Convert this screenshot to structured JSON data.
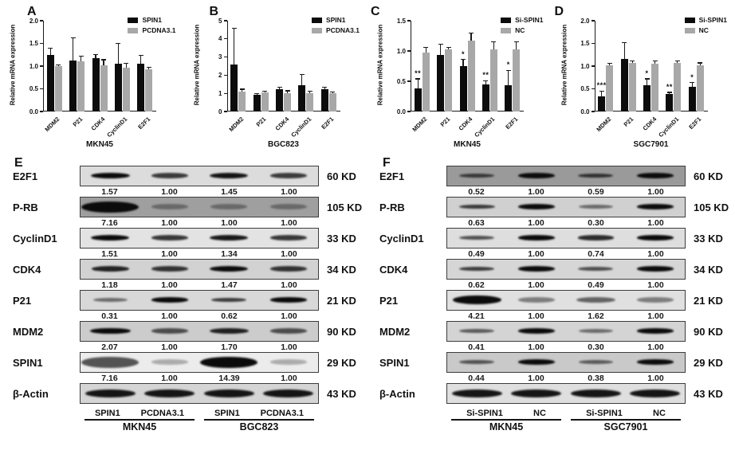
{
  "page": {
    "background": "#ffffff"
  },
  "colors": {
    "bar_black": "#0c0c0c",
    "bar_gray": "#a8a8a8",
    "axis": "#1a1a1a",
    "band": "#0b0b0b"
  },
  "chart_data": [
    {
      "type": "bar",
      "panel": "A",
      "categories": [
        "MDM2",
        "P21",
        "CDK4",
        "CyclinD1",
        "E2F1"
      ],
      "series": [
        {
          "name": "SPIN1",
          "color": "#0c0c0c",
          "values": [
            1.25,
            1.12,
            1.18,
            1.05,
            1.06
          ],
          "errors": [
            0.15,
            0.5,
            0.08,
            0.45,
            0.18
          ],
          "sig": [
            "",
            "",
            "",
            "",
            ""
          ]
        },
        {
          "name": "PCDNA3.1",
          "color": "#a8a8a8",
          "values": [
            1.0,
            1.1,
            1.01,
            0.96,
            0.93
          ],
          "errors": [
            0.03,
            0.12,
            0.13,
            0.1,
            0.05
          ]
        }
      ],
      "ylabel": "Relative mRNA expression",
      "xlabel": "MKN45",
      "ylim": [
        0,
        2
      ],
      "yticks": [
        0,
        0.5,
        1,
        1.5,
        2
      ],
      "ytick_labels": [
        "0.0",
        "0.5",
        "1.0",
        "1.5",
        "2.0"
      ],
      "legend_position": "top-right",
      "grid": false
    },
    {
      "type": "bar",
      "panel": "B",
      "categories": [
        "MDM2",
        "P21",
        "CDK4",
        "CyclinD1",
        "E2F1"
      ],
      "series": [
        {
          "name": "SPIN1",
          "color": "#0c0c0c",
          "values": [
            2.6,
            0.9,
            1.22,
            1.45,
            1.22
          ],
          "errors": [
            2.0,
            0.1,
            0.1,
            0.6,
            0.12
          ],
          "sig": [
            "",
            "",
            "",
            "",
            ""
          ]
        },
        {
          "name": "PCDNA3.1",
          "color": "#a8a8a8",
          "values": [
            1.08,
            1.05,
            1.02,
            1.02,
            1.0
          ],
          "errors": [
            0.15,
            0.08,
            0.12,
            0.1,
            0.08
          ]
        }
      ],
      "ylabel": "Relative mRNA expression",
      "xlabel": "BGC823",
      "ylim": [
        0,
        5
      ],
      "yticks": [
        0,
        1,
        2,
        3,
        4,
        5
      ],
      "ytick_labels": [
        "0",
        "1",
        "2",
        "3",
        "4",
        "5"
      ],
      "legend_position": "top-right",
      "grid": false
    },
    {
      "type": "bar",
      "panel": "C",
      "categories": [
        "MDM2",
        "P21",
        "CDK4",
        "CyclinD1",
        "E2F1"
      ],
      "series": [
        {
          "name": "Si-SPIN1",
          "color": "#0c0c0c",
          "values": [
            0.38,
            0.94,
            0.75,
            0.45,
            0.43
          ],
          "errors": [
            0.16,
            0.17,
            0.11,
            0.06,
            0.25
          ],
          "sig": [
            "**",
            "",
            "*",
            "**",
            "*"
          ]
        },
        {
          "name": "NC",
          "color": "#a8a8a8",
          "values": [
            0.98,
            1.02,
            1.17,
            1.02,
            1.03
          ],
          "errors": [
            0.08,
            0.04,
            0.13,
            0.13,
            0.12
          ]
        }
      ],
      "ylabel": "Relative mRNA expression",
      "xlabel": "MKN45",
      "ylim": [
        0,
        1.5
      ],
      "yticks": [
        0,
        0.5,
        1,
        1.5
      ],
      "ytick_labels": [
        "0.0",
        "0.5",
        "1.0",
        "1.5"
      ],
      "legend_position": "top-right",
      "grid": false
    },
    {
      "type": "bar",
      "panel": "D",
      "categories": [
        "MDM2",
        "P21",
        "CDK4",
        "CyclinD1",
        "E2F1"
      ],
      "series": [
        {
          "name": "Si-SPIN1",
          "color": "#0c0c0c",
          "values": [
            0.33,
            1.15,
            0.58,
            0.38,
            0.54
          ],
          "errors": [
            0.12,
            0.37,
            0.14,
            0.04,
            0.1
          ],
          "sig": [
            "***",
            "",
            "*",
            "**",
            "*"
          ]
        },
        {
          "name": "NC",
          "color": "#a8a8a8",
          "values": [
            1.02,
            1.07,
            1.06,
            1.07,
            1.02
          ],
          "errors": [
            0.04,
            0.05,
            0.05,
            0.05,
            0.05
          ]
        }
      ],
      "ylabel": "Relative mRNA expression",
      "xlabel": "SGC7901",
      "ylim": [
        0,
        2
      ],
      "yticks": [
        0,
        0.5,
        1,
        1.5,
        2
      ],
      "ytick_labels": [
        "0.0",
        "0.5",
        "1.0",
        "1.5",
        "2.0"
      ],
      "legend_position": "top-right",
      "grid": false
    }
  ],
  "blot_data": [
    {
      "panel": "E",
      "rows": [
        {
          "protein": "E2F1",
          "kd": "60 KD",
          "values": [
            "1.57",
            "1.00",
            "1.45",
            "1.00"
          ],
          "bg": "#dcdcdc"
        },
        {
          "protein": "P-RB",
          "kd": "105 KD",
          "values": [
            "7.16",
            "1.00",
            "1.00",
            "1.00"
          ],
          "bg": "#9f9f9f"
        },
        {
          "protein": "CyclinD1",
          "kd": "33 KD",
          "values": [
            "1.51",
            "1.00",
            "1.34",
            "1.00"
          ],
          "bg": "#e3e3e3"
        },
        {
          "protein": "CDK4",
          "kd": "34 KD",
          "values": [
            "1.18",
            "1.00",
            "1.47",
            "1.00"
          ],
          "bg": "#d2d2d2"
        },
        {
          "protein": "P21",
          "kd": "21 KD",
          "values": [
            "0.31",
            "1.00",
            "0.62",
            "1.00"
          ],
          "bg": "#d8d8d8"
        },
        {
          "protein": "MDM2",
          "kd": "90 KD",
          "values": [
            "2.07",
            "1.00",
            "1.70",
            "1.00"
          ],
          "bg": "#cccccc"
        },
        {
          "protein": "SPIN1",
          "kd": "29 KD",
          "values": [
            "7.16",
            "1.00",
            "14.39",
            "1.00"
          ],
          "bg": "#ececec"
        },
        {
          "protein": "β-Actin",
          "kd": "43 KD",
          "values": null,
          "bg": "#d5d5d5"
        }
      ],
      "lanes": [
        "SPIN1",
        "PCDNA3.1",
        "SPIN1",
        "PCDNA3.1"
      ],
      "groups": [
        "MKN45",
        "BGC823"
      ]
    },
    {
      "panel": "F",
      "rows": [
        {
          "protein": "E2F1",
          "kd": "60 KD",
          "values": [
            "0.52",
            "1.00",
            "0.59",
            "1.00"
          ],
          "bg": "#9a9a9a"
        },
        {
          "protein": "P-RB",
          "kd": "105 KD",
          "values": [
            "0.63",
            "1.00",
            "0.30",
            "1.00"
          ],
          "bg": "#d0d0d0"
        },
        {
          "protein": "CyclinD1",
          "kd": "33 KD",
          "values": [
            "0.49",
            "1.00",
            "0.74",
            "1.00"
          ],
          "bg": "#dedede"
        },
        {
          "protein": "CDK4",
          "kd": "34 KD",
          "values": [
            "0.62",
            "1.00",
            "0.49",
            "1.00"
          ],
          "bg": "#d6d6d6"
        },
        {
          "protein": "P21",
          "kd": "21 KD",
          "values": [
            "4.21",
            "1.00",
            "1.62",
            "1.00"
          ],
          "bg": "#e0e0e0"
        },
        {
          "protein": "MDM2",
          "kd": "90 KD",
          "values": [
            "0.41",
            "1.00",
            "0.30",
            "1.00"
          ],
          "bg": "#d4d4d4"
        },
        {
          "protein": "SPIN1",
          "kd": "29 KD",
          "values": [
            "0.44",
            "1.00",
            "0.38",
            "1.00"
          ],
          "bg": "#c9c9c9"
        },
        {
          "protein": "β-Actin",
          "kd": "43 KD",
          "values": null,
          "bg": "#dfdfdf"
        }
      ],
      "lanes": [
        "Si-SPIN1",
        "NC",
        "Si-SPIN1",
        "NC"
      ],
      "groups": [
        "MKN45",
        "SGC7901"
      ]
    }
  ]
}
